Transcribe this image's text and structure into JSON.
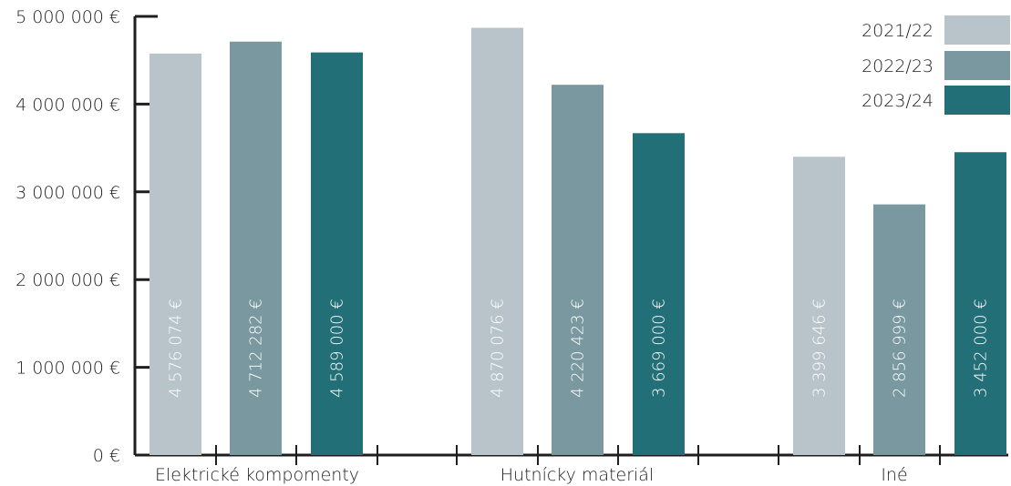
{
  "chart_data": {
    "type": "bar",
    "categories": [
      "Elektrické kompomenty",
      "Hutnícky materiál",
      "Iné"
    ],
    "series": [
      {
        "name": "2021/22",
        "color": "#b8c4c9",
        "values": [
          4576074,
          4870076,
          3399646
        ],
        "labels": [
          "4 576 074 €",
          "4 870 076 €",
          "3 399 646 €"
        ]
      },
      {
        "name": "2022/23",
        "color": "#7998a0",
        "values": [
          4712282,
          4220423,
          2856999
        ],
        "labels": [
          "4 712 282 €",
          "4 220 423 €",
          "2 856 999 €"
        ]
      },
      {
        "name": "2023/24",
        "color": "#236f77",
        "values": [
          4589000,
          3669000,
          3452000
        ],
        "labels": [
          "4 589 000 €",
          "3 669 000 €",
          "3 452 000 €"
        ]
      }
    ],
    "yticks": [
      0,
      1000000,
      2000000,
      3000000,
      4000000,
      5000000
    ],
    "ytick_labels": [
      "0 €",
      "1 000 000 €",
      "2 000 000 €",
      "3 000 000 €",
      "4 000 000 €",
      "5 000 000 €"
    ],
    "ylim": [
      0,
      5000000
    ],
    "legend_position": "top-right",
    "grid": false
  }
}
